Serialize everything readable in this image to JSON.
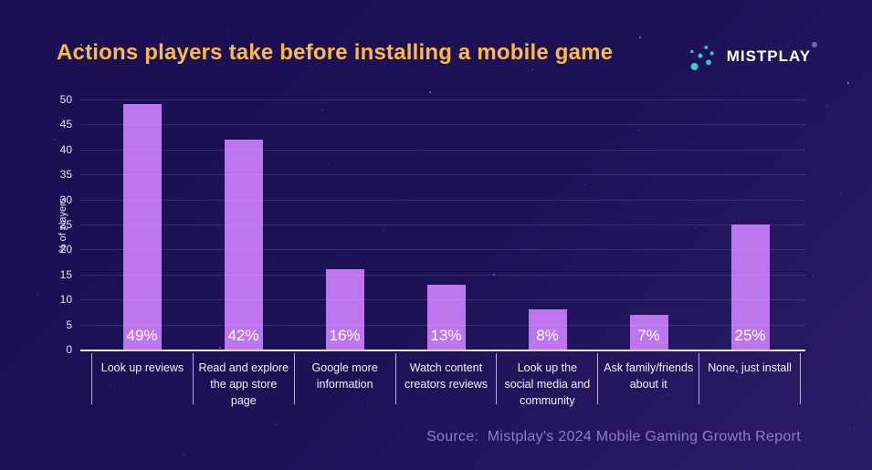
{
  "header": {
    "title": "Actions players take before installing a mobile game",
    "logo_text": "MISTPLAY",
    "logo_reg": "®"
  },
  "chart_data": {
    "type": "bar",
    "title": "Actions players take before installing a mobile game",
    "categories": [
      "Look up reviews",
      "Read and explore the app store page",
      "Google more information",
      "Watch content creators reviews",
      "Look up the social media and community",
      "Ask family/friends about it",
      "None, just install"
    ],
    "values": [
      49,
      42,
      16,
      13,
      8,
      7,
      25
    ],
    "value_labels": [
      "49%",
      "42%",
      "16%",
      "13%",
      "8%",
      "7%",
      "25%"
    ],
    "xlabel": "",
    "ylabel": "% of players",
    "ylim": [
      0,
      50
    ],
    "ytick_step": 5,
    "grid": true,
    "legend": false,
    "bar_color": "#bd76ee"
  },
  "footer": {
    "source": "Source:  Mistplay's 2024 Mobile Gaming Growth Report"
  },
  "colors": {
    "background_dark": "#1b0f52",
    "background_light": "#2b1c67",
    "title": "#fbb94a",
    "bar": "#bd76ee",
    "logo_dot": "#35cfc3",
    "axis_line": "#ece1f8",
    "source_text": "#8d7ec0"
  }
}
